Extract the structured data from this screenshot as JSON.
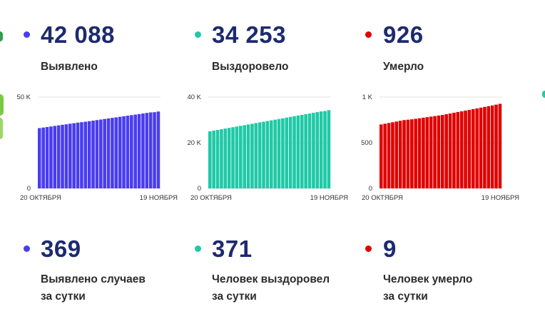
{
  "totals": [
    {
      "value": "42 088",
      "label": "Выявлено",
      "color": "#4a3cf0"
    },
    {
      "value": "34 253",
      "label": "Выздоровело",
      "color": "#1fc9a6"
    },
    {
      "value": "926",
      "label": "Умерло",
      "color": "#e00000"
    }
  ],
  "daily": [
    {
      "value": "369",
      "label_line1": "Выявлено случаев",
      "label_line2": "за сутки",
      "color": "#4a3cf0"
    },
    {
      "value": "371",
      "label_line1": "Человек выздоровел",
      "label_line2": "за сутки",
      "color": "#1fc9a6"
    },
    {
      "value": "9",
      "label_line1": "Человек умерло",
      "label_line2": "за сутки",
      "color": "#e00000"
    }
  ],
  "chart_data": [
    {
      "type": "bar",
      "color": "#4a3cf0",
      "x_start_label": "20 ОКТЯБРЯ",
      "x_end_label": "19 НОЯБРЯ",
      "ylim": [
        0,
        50000
      ],
      "yticks": [
        {
          "value": 0,
          "label": "0"
        },
        {
          "value": 50000,
          "label": "50 K"
        }
      ],
      "values": [
        33000,
        33300,
        33600,
        33900,
        34200,
        34500,
        34800,
        35100,
        35400,
        35700,
        36000,
        36250,
        36500,
        36800,
        37100,
        37400,
        37700,
        38000,
        38300,
        38600,
        38900,
        39200,
        39500,
        39800,
        40100,
        40400,
        40700,
        41000,
        41300,
        41600,
        41719,
        42088
      ]
    },
    {
      "type": "bar",
      "color": "#1fc9a6",
      "x_start_label": "20 ОКТЯБРЯ",
      "x_end_label": "19 НОЯБРЯ",
      "ylim": [
        0,
        40000
      ],
      "yticks": [
        {
          "value": 0,
          "label": "0"
        },
        {
          "value": 20000,
          "label": "20 K"
        },
        {
          "value": 40000,
          "label": "40 K"
        }
      ],
      "values": [
        25000,
        25300,
        25600,
        25900,
        26200,
        26500,
        26800,
        27100,
        27400,
        27700,
        28000,
        28300,
        28600,
        28900,
        29200,
        29500,
        29800,
        30100,
        30400,
        30700,
        31000,
        31300,
        31600,
        31900,
        32200,
        32500,
        32800,
        33100,
        33400,
        33700,
        33882,
        34253
      ]
    },
    {
      "type": "bar",
      "color": "#e00000",
      "x_start_label": "20 ОКТЯБРЯ",
      "x_end_label": "19 НОЯБРЯ",
      "ylim": [
        0,
        1000
      ],
      "yticks": [
        {
          "value": 0,
          "label": "0"
        },
        {
          "value": 500,
          "label": "500"
        },
        {
          "value": 1000,
          "label": "1 K"
        }
      ],
      "values": [
        700,
        708,
        716,
        724,
        732,
        740,
        748,
        752,
        756,
        762,
        768,
        774,
        780,
        786,
        792,
        798,
        804,
        812,
        820,
        828,
        836,
        844,
        852,
        860,
        868,
        876,
        884,
        892,
        900,
        908,
        917,
        926
      ]
    }
  ]
}
